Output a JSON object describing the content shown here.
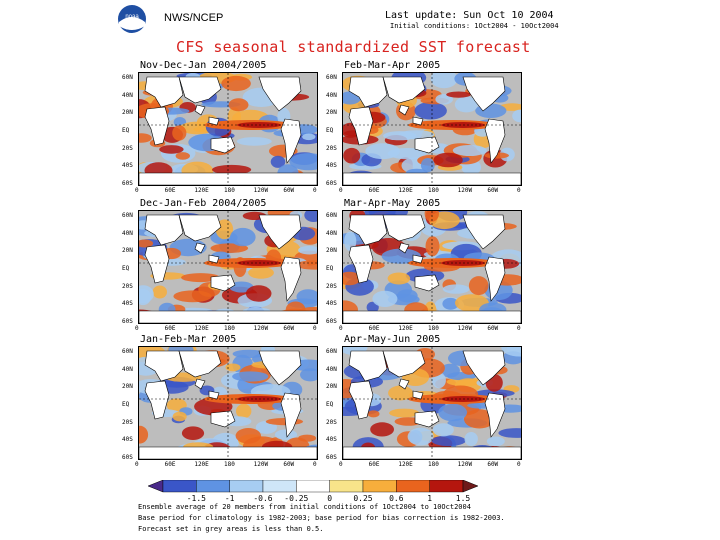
{
  "header": {
    "org": "NWS/NCEP",
    "logo_text": "noaa",
    "last_update": "Last update: Sun Oct 10 2004",
    "initial_conditions": "Initial conditions: 1Oct2004 - 10Oct2004",
    "title": "CFS seasonal standardized SST forecast"
  },
  "panels": [
    {
      "id": "ndj",
      "title": "Nov-Dec-Jan 2004/2005"
    },
    {
      "id": "fma",
      "title": "Feb-Mar-Apr 2005"
    },
    {
      "id": "djf",
      "title": "Dec-Jan-Feb 2004/2005"
    },
    {
      "id": "mam",
      "title": "Mar-Apr-May 2005"
    },
    {
      "id": "jfm",
      "title": "Jan-Feb-Mar 2005"
    },
    {
      "id": "amj",
      "title": "Apr-May-Jun 2005"
    }
  ],
  "axes": {
    "lat_labels": [
      "60N",
      "40N",
      "20N",
      "EQ",
      "20S",
      "40S",
      "60S"
    ],
    "lon_labels": [
      "0",
      "60E",
      "120E",
      "180",
      "120W",
      "60W",
      "0"
    ]
  },
  "colorbar": {
    "labels": [
      "-1.5",
      "-1",
      "-0.6",
      "-0.25",
      "0",
      "0.25",
      "0.6",
      "1",
      "1.5"
    ],
    "colors": [
      "#4a2a8a",
      "#3a56c8",
      "#5f93e3",
      "#a7cdf2",
      "#cfe6f8",
      "#ffffff",
      "#f8e48a",
      "#f7ae3c",
      "#e9641e",
      "#b5160e",
      "#6e1a1a"
    ]
  },
  "footer": [
    "Ensemble average of 20 members from initial conditions of 1Oct2004 to 10Oct2004",
    "Base period for climatology is 1982-2003; base period for bias correction is 1982-2003.",
    "Forecast set in grey areas is less than 0.5."
  ],
  "colors": {
    "title": "#d8231f",
    "land": "#ffffff",
    "grey": "#bdbdbd"
  }
}
